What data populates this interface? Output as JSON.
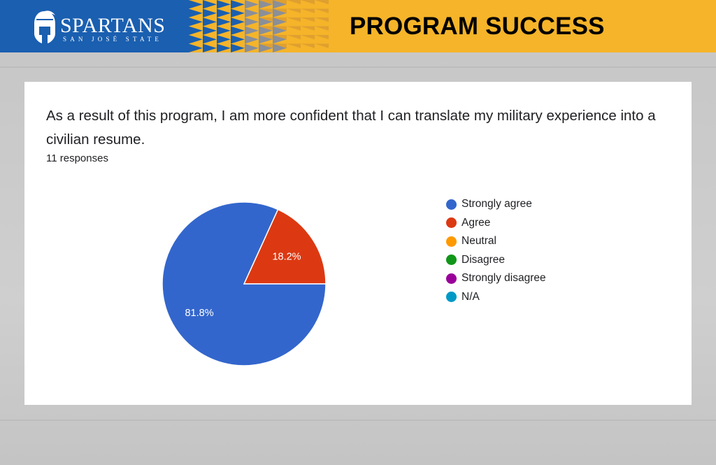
{
  "header": {
    "title": "PROGRAM SUCCESS",
    "logo_text": "SPARTANS",
    "logo_subtext": "SAN JOSÉ STATE",
    "colors": {
      "blue": "#1a5fb0",
      "gold": "#f5b429",
      "gray": "#8a8f99"
    }
  },
  "card": {
    "question_line1": "As a result of this program, I am more confident that I can translate my military experience into a",
    "question_line2": "civilian resume.",
    "responses": "11 responses"
  },
  "chart_data": {
    "type": "pie",
    "categories": [
      "Strongly agree",
      "Agree",
      "Neutral",
      "Disagree",
      "Strongly disagree",
      "N/A"
    ],
    "values": [
      81.8,
      18.2,
      0,
      0,
      0,
      0
    ],
    "data_labels": [
      "81.8%",
      "18.2%",
      "",
      "",
      "",
      ""
    ],
    "colors": [
      "#3366cc",
      "#dc3912",
      "#ff9900",
      "#109618",
      "#990099",
      "#0099c6"
    ],
    "legend_position": "right"
  }
}
